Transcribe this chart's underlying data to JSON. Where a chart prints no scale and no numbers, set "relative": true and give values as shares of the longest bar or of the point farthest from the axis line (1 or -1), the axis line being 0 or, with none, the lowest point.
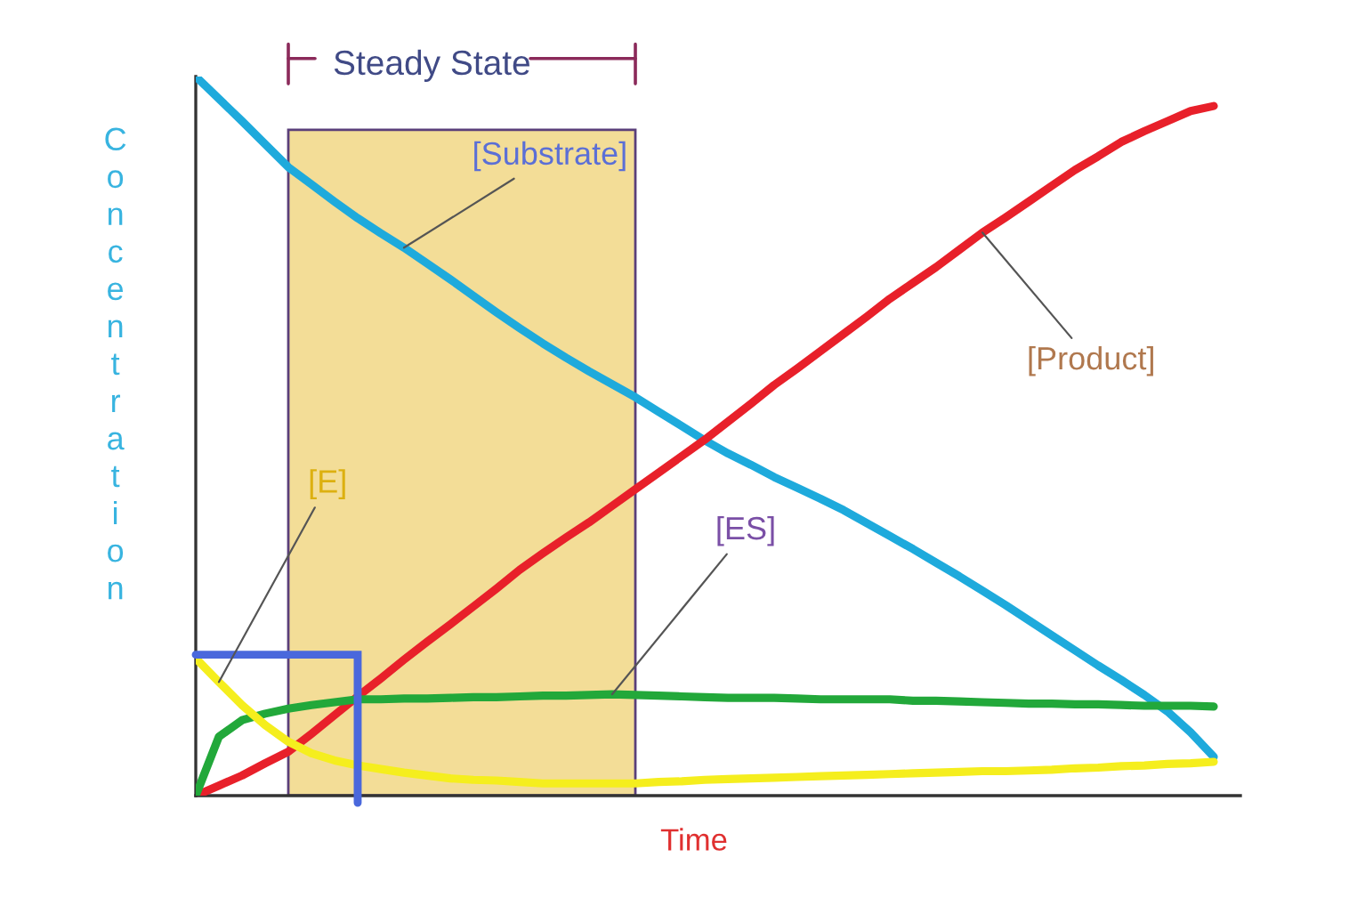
{
  "chart_data": {
    "type": "line",
    "relative": true,
    "xlabel": "Time",
    "ylabel": "Concentration",
    "categories": [
      null,
      null,
      null,
      null,
      null,
      null,
      null,
      null,
      null,
      null,
      null,
      null,
      null,
      null,
      null,
      null,
      null,
      null,
      null,
      null,
      null,
      null,
      null,
      null,
      null,
      null,
      null,
      null,
      null,
      null,
      null,
      null,
      null,
      null,
      null,
      null,
      null,
      null,
      null,
      null,
      null,
      null,
      null,
      null,
      null
    ],
    "series": [
      {
        "color": "#1eaadc",
        "values": [
          1.0,
          0.969,
          0.938,
          0.906,
          0.874,
          0.85,
          0.826,
          0.803,
          0.782,
          0.762,
          0.74,
          0.718,
          0.695,
          0.672,
          0.65,
          0.629,
          0.609,
          0.59,
          0.572,
          0.554,
          0.534,
          0.514,
          0.494,
          0.476,
          0.46,
          0.443,
          0.428,
          0.413,
          0.397,
          0.379,
          0.361,
          0.343,
          0.324,
          0.305,
          0.285,
          0.265,
          0.244,
          0.223,
          0.202,
          0.181,
          0.161,
          0.14,
          0.117,
          0.088,
          0.054
        ]
      },
      {
        "color": "#e8202a",
        "values": [
          0,
          0.014,
          0.028,
          0.045,
          0.061,
          0.086,
          0.112,
          0.138,
          0.163,
          0.189,
          0.214,
          0.238,
          0.263,
          0.288,
          0.314,
          0.337,
          0.359,
          0.38,
          0.403,
          0.426,
          0.449,
          0.472,
          0.495,
          0.52,
          0.545,
          0.571,
          0.594,
          0.618,
          0.642,
          0.666,
          0.691,
          0.713,
          0.735,
          0.759,
          0.783,
          0.804,
          0.826,
          0.848,
          0.87,
          0.889,
          0.909,
          0.924,
          0.938,
          0.952,
          0.959
        ]
      },
      {
        "color": "#22a83a",
        "values": [
          0,
          0.082,
          0.105,
          0.114,
          0.121,
          0.126,
          0.13,
          0.134,
          0.134,
          0.135,
          0.135,
          0.136,
          0.137,
          0.137,
          0.138,
          0.139,
          0.139,
          0.14,
          0.141,
          0.14,
          0.139,
          0.138,
          0.137,
          0.136,
          0.136,
          0.136,
          0.135,
          0.134,
          0.134,
          0.134,
          0.134,
          0.132,
          0.132,
          0.131,
          0.13,
          0.129,
          0.128,
          0.128,
          0.127,
          0.127,
          0.126,
          0.125,
          0.125,
          0.125,
          0.124
        ]
      },
      {
        "color": "#f5ee1e",
        "values": [
          0.191,
          0.158,
          0.126,
          0.098,
          0.075,
          0.059,
          0.049,
          0.042,
          0.037,
          0.032,
          0.028,
          0.024,
          0.022,
          0.021,
          0.019,
          0.017,
          0.017,
          0.017,
          0.017,
          0.017,
          0.019,
          0.02,
          0.022,
          0.023,
          0.024,
          0.025,
          0.026,
          0.027,
          0.028,
          0.029,
          0.03,
          0.031,
          0.032,
          0.033,
          0.034,
          0.034,
          0.035,
          0.036,
          0.038,
          0.039,
          0.041,
          0.042,
          0.044,
          0.045,
          0.047
        ]
      }
    ],
    "annotations": [
      "Steady State",
      "[Substrate]",
      "[Product]",
      "[ES]",
      "[E]"
    ]
  }
}
